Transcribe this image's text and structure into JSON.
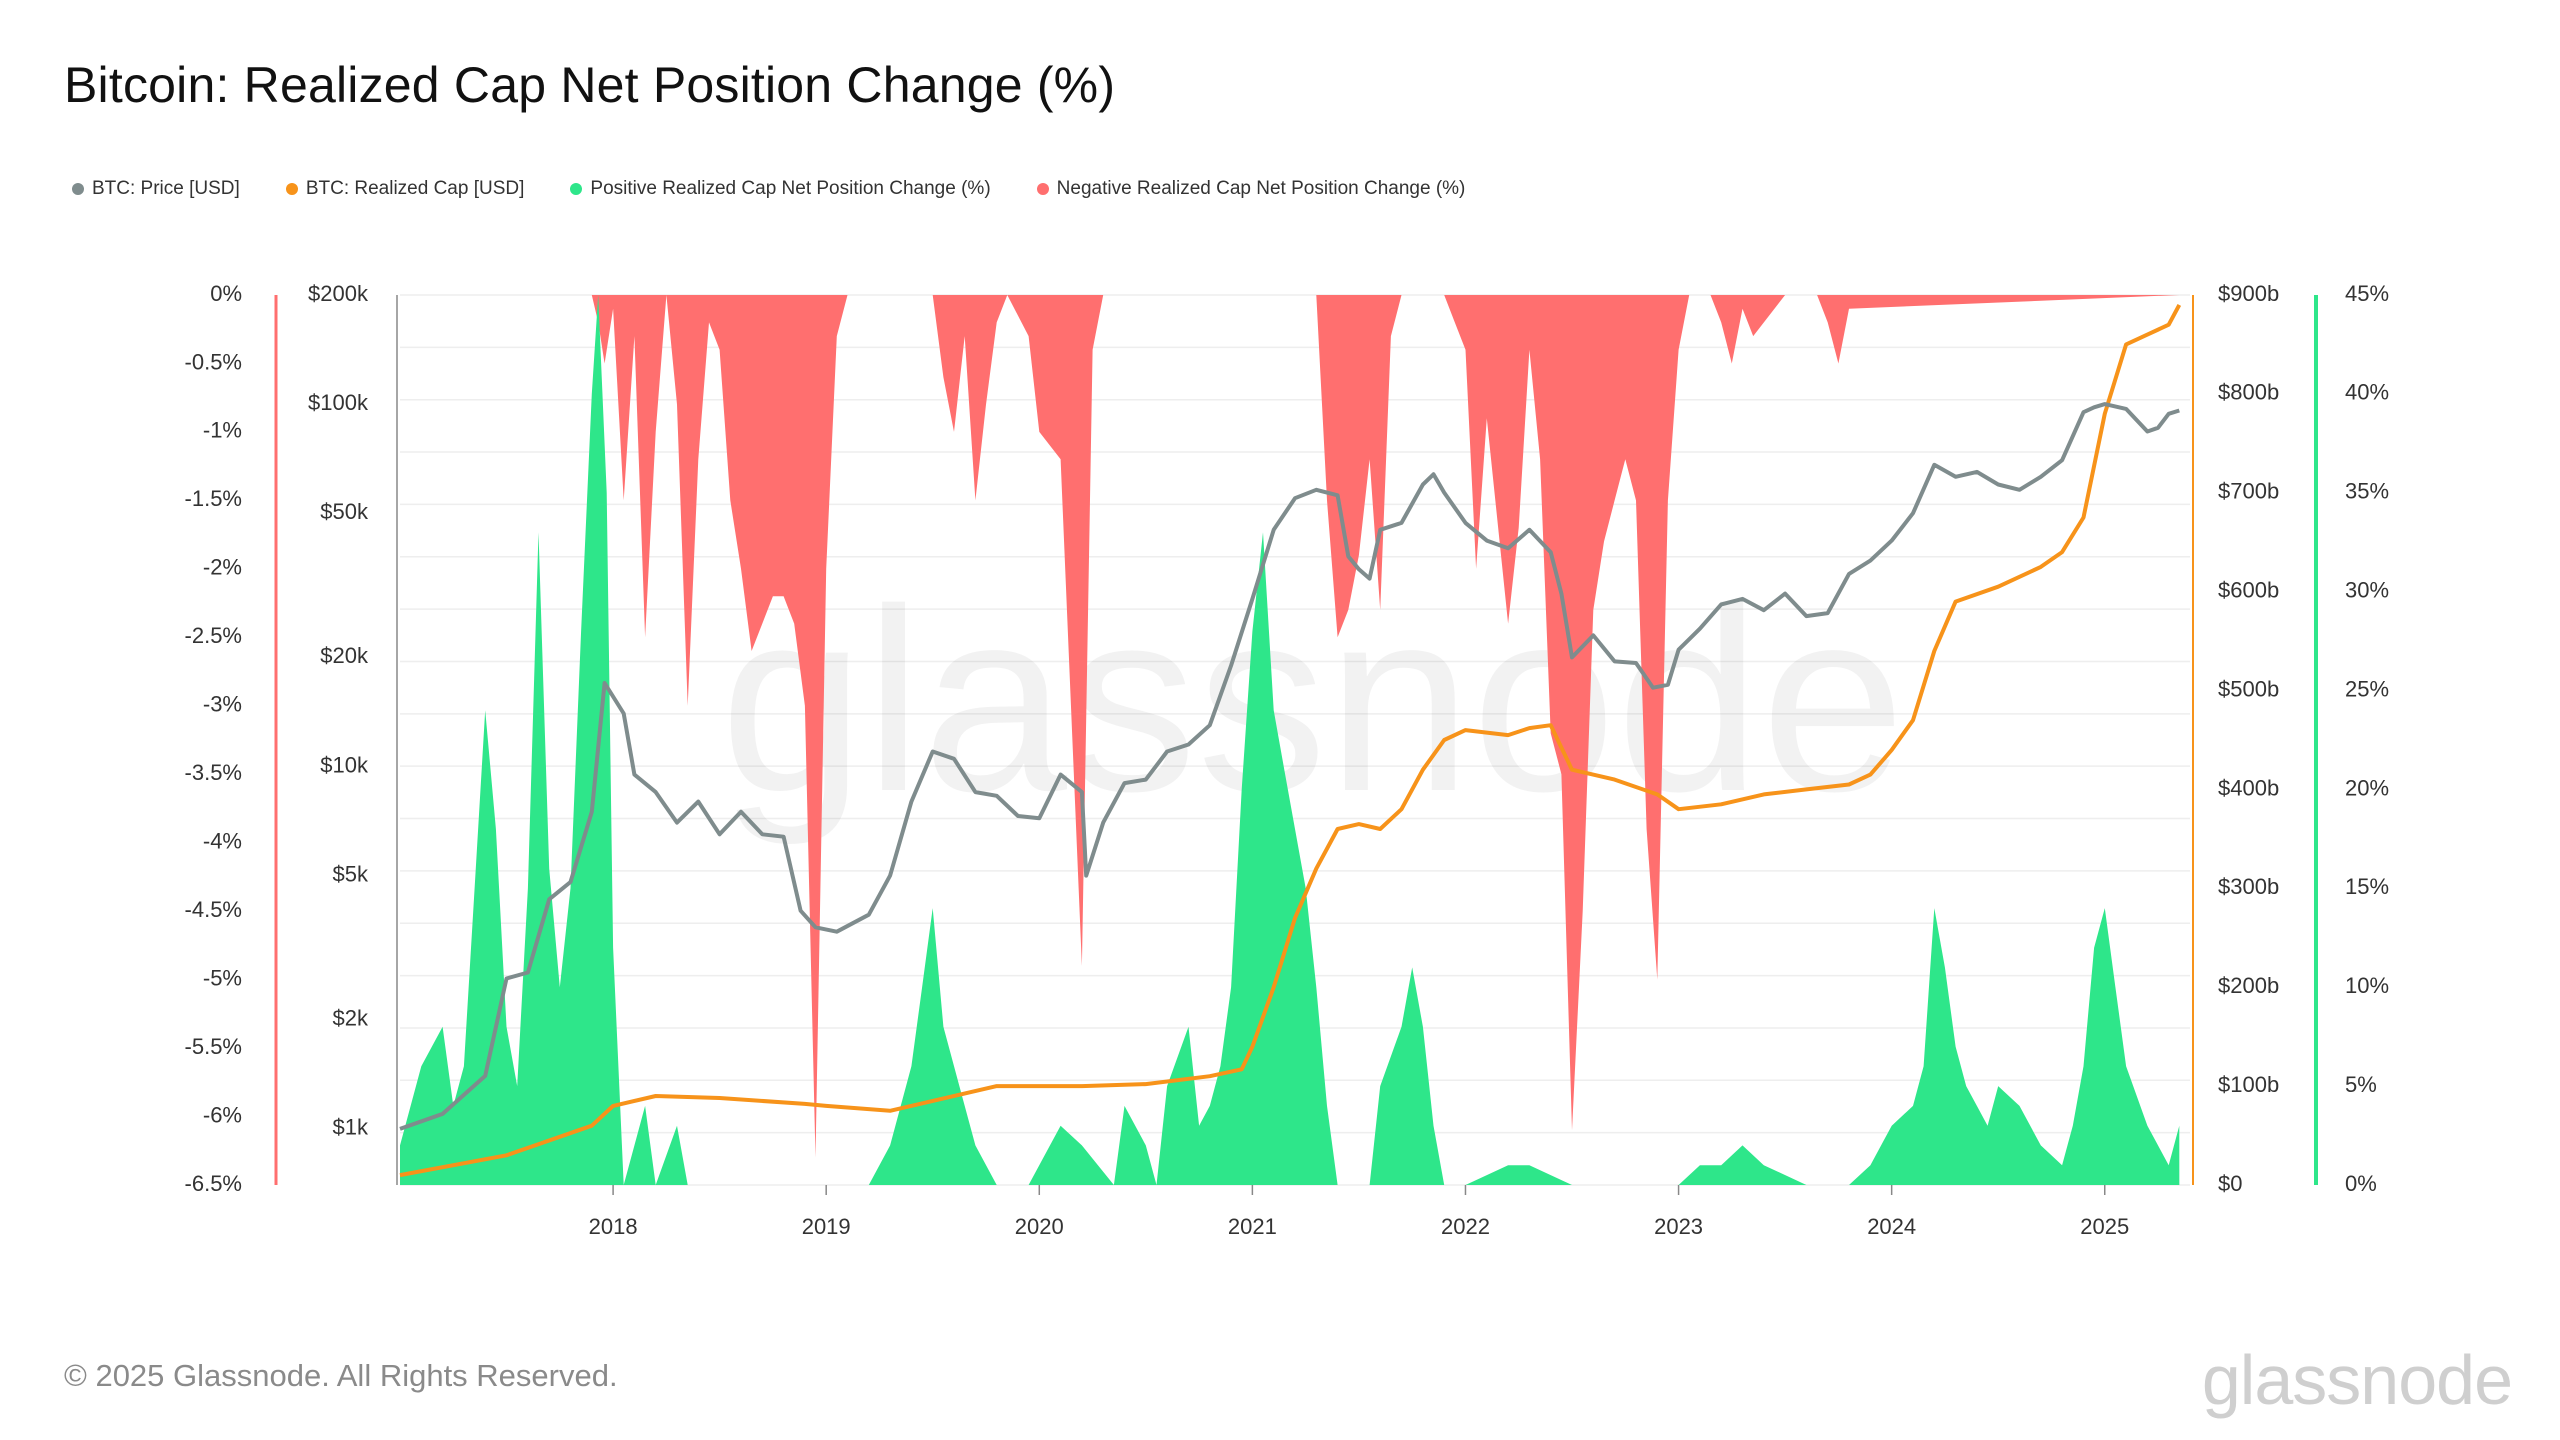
{
  "title": "Bitcoin: Realized Cap Net Position Change (%)",
  "legend": [
    {
      "label": "BTC: Price [USD]",
      "color": "#7f8c8d"
    },
    {
      "label": "BTC: Realized Cap [USD]",
      "color": "#f7931a"
    },
    {
      "label": "Positive Realized Cap Net Position Change (%)",
      "color": "#2ee68a"
    },
    {
      "label": "Negative Realized Cap Net Position Change (%)",
      "color": "#ff6f6f"
    }
  ],
  "footer": "© 2025 Glassnode. All Rights Reserved.",
  "brand": "glassnode",
  "watermark": "glassnode",
  "colors": {
    "price": "#7f8c8d",
    "realized": "#f7931a",
    "positive": "#2ee68a",
    "negative": "#ff6f6f",
    "grid": "#eeeeee"
  },
  "chart_data": {
    "type": "area",
    "x_axis": {
      "range": [
        2017.0,
        2025.4
      ],
      "ticks": [
        "2018",
        "2019",
        "2020",
        "2021",
        "2022",
        "2023",
        "2024",
        "2025"
      ],
      "tick_values": [
        2018,
        2019,
        2020,
        2021,
        2022,
        2023,
        2024,
        2025
      ]
    },
    "y_axes": {
      "negative_pct": {
        "side": "left-outer",
        "range": [
          -6.5,
          0
        ],
        "tick_labels": [
          "0%",
          "-0.5%",
          "-1%",
          "-1.5%",
          "-2%",
          "-2.5%",
          "-3%",
          "-3.5%",
          "-4%",
          "-4.5%",
          "-5%",
          "-5.5%",
          "-6%",
          "-6.5%"
        ],
        "tick_values": [
          0,
          -0.5,
          -1,
          -1.5,
          -2,
          -2.5,
          -3,
          -3.5,
          -4,
          -4.5,
          -5,
          -5.5,
          -6,
          -6.5
        ],
        "color": "#ff6f6f"
      },
      "price": {
        "side": "left-inner",
        "scale": "log",
        "range": [
          700,
          200000
        ],
        "tick_labels": [
          "$200k",
          "$100k",
          "$50k",
          "$20k",
          "$10k",
          "$5k",
          "$2k",
          "$1k"
        ],
        "tick_values": [
          200000,
          100000,
          50000,
          20000,
          10000,
          5000,
          2000,
          1000
        ]
      },
      "realized_cap": {
        "side": "right-inner",
        "range": [
          0,
          900
        ],
        "unit": "b USD",
        "tick_labels": [
          "$900b",
          "$800b",
          "$700b",
          "$600b",
          "$500b",
          "$400b",
          "$300b",
          "$200b",
          "$100b",
          "$0"
        ],
        "tick_values": [
          900,
          800,
          700,
          600,
          500,
          400,
          300,
          200,
          100,
          0
        ],
        "color": "#f7931a"
      },
      "positive_pct": {
        "side": "right-outer",
        "range": [
          0,
          45
        ],
        "tick_labels": [
          "45%",
          "40%",
          "35%",
          "30%",
          "25%",
          "20%",
          "15%",
          "10%",
          "5%",
          "0%"
        ],
        "tick_values": [
          45,
          40,
          35,
          30,
          25,
          20,
          15,
          10,
          5,
          0
        ],
        "color": "#2ee68a"
      }
    },
    "series": [
      {
        "name": "BTC: Price [USD]",
        "axis": "price",
        "style": "line",
        "x": [
          2017.0,
          2017.2,
          2017.4,
          2017.5,
          2017.6,
          2017.7,
          2017.8,
          2017.9,
          2017.96,
          2018.05,
          2018.1,
          2018.2,
          2018.3,
          2018.4,
          2018.5,
          2018.6,
          2018.7,
          2018.8,
          2018.88,
          2018.95,
          2019.05,
          2019.2,
          2019.3,
          2019.4,
          2019.5,
          2019.6,
          2019.7,
          2019.8,
          2019.9,
          2020.0,
          2020.1,
          2020.2,
          2020.22,
          2020.3,
          2020.4,
          2020.5,
          2020.6,
          2020.7,
          2020.8,
          2020.9,
          2021.0,
          2021.1,
          2021.2,
          2021.3,
          2021.4,
          2021.45,
          2021.5,
          2021.55,
          2021.6,
          2021.7,
          2021.8,
          2021.85,
          2021.9,
          2022.0,
          2022.1,
          2022.2,
          2022.3,
          2022.4,
          2022.45,
          2022.5,
          2022.6,
          2022.7,
          2022.8,
          2022.88,
          2022.95,
          2023.0,
          2023.1,
          2023.2,
          2023.3,
          2023.4,
          2023.5,
          2023.6,
          2023.7,
          2023.8,
          2023.9,
          2024.0,
          2024.1,
          2024.2,
          2024.3,
          2024.4,
          2024.5,
          2024.6,
          2024.7,
          2024.8,
          2024.9,
          2024.95,
          2025.0,
          2025.1,
          2025.2,
          2025.25,
          2025.3,
          2025.35
        ],
        "y": [
          1000,
          1100,
          1400,
          2600,
          2700,
          4300,
          4800,
          7500,
          17000,
          14000,
          9500,
          8500,
          7000,
          8000,
          6500,
          7500,
          6500,
          6400,
          4000,
          3600,
          3500,
          3900,
          5000,
          8000,
          11000,
          10500,
          8500,
          8300,
          7300,
          7200,
          9500,
          8500,
          5000,
          7000,
          9000,
          9200,
          11000,
          11500,
          13000,
          19000,
          29000,
          45000,
          55000,
          58000,
          56000,
          38000,
          35000,
          33000,
          45000,
          47000,
          60000,
          64000,
          57000,
          47000,
          42000,
          40000,
          45000,
          39000,
          30000,
          20000,
          23000,
          19500,
          19300,
          16500,
          16800,
          21000,
          24000,
          28000,
          29000,
          27000,
          30000,
          26000,
          26500,
          34000,
          37000,
          42000,
          50000,
          68000,
          63000,
          65000,
          60000,
          58000,
          63000,
          70000,
          95000,
          98000,
          100000,
          97000,
          84000,
          86000,
          94000,
          96000
        ]
      },
      {
        "name": "BTC: Realized Cap [USD]",
        "axis": "realized_cap",
        "style": "line",
        "x": [
          2017.0,
          2017.5,
          2017.9,
          2018.0,
          2018.2,
          2018.5,
          2018.9,
          2019.0,
          2019.3,
          2019.5,
          2019.8,
          2020.0,
          2020.2,
          2020.5,
          2020.8,
          2020.95,
          2021.0,
          2021.1,
          2021.2,
          2021.3,
          2021.4,
          2021.5,
          2021.6,
          2021.7,
          2021.8,
          2021.9,
          2022.0,
          2022.2,
          2022.3,
          2022.4,
          2022.5,
          2022.7,
          2022.9,
          2023.0,
          2023.2,
          2023.4,
          2023.6,
          2023.8,
          2023.9,
          2024.0,
          2024.1,
          2024.2,
          2024.3,
          2024.5,
          2024.7,
          2024.8,
          2024.9,
          2025.0,
          2025.1,
          2025.2,
          2025.3,
          2025.35
        ],
        "y": [
          10,
          30,
          60,
          80,
          90,
          88,
          82,
          80,
          75,
          85,
          100,
          100,
          100,
          102,
          110,
          117,
          140,
          200,
          270,
          320,
          360,
          365,
          360,
          380,
          420,
          450,
          460,
          455,
          462,
          465,
          420,
          410,
          395,
          380,
          385,
          395,
          400,
          405,
          415,
          440,
          470,
          540,
          590,
          605,
          625,
          640,
          675,
          780,
          850,
          860,
          870,
          890
        ]
      },
      {
        "name": "Positive Realized Cap Net Position Change (%)",
        "axis": "positive_pct",
        "style": "area",
        "x": [
          2017.0,
          2017.1,
          2017.2,
          2017.25,
          2017.3,
          2017.35,
          2017.4,
          2017.45,
          2017.5,
          2017.55,
          2017.6,
          2017.65,
          2017.7,
          2017.75,
          2017.8,
          2017.85,
          2017.9,
          2017.93,
          2017.97,
          2018.0,
          2018.05,
          2018.15,
          2018.2,
          2018.3,
          2018.35,
          2018.5,
          2018.7,
          2019.2,
          2019.3,
          2019.4,
          2019.45,
          2019.5,
          2019.55,
          2019.65,
          2019.7,
          2019.8,
          2019.95,
          2020.1,
          2020.2,
          2020.35,
          2020.4,
          2020.5,
          2020.55,
          2020.6,
          2020.7,
          2020.75,
          2020.8,
          2020.85,
          2020.9,
          2020.95,
          2021.0,
          2021.05,
          2021.1,
          2021.15,
          2021.2,
          2021.25,
          2021.3,
          2021.35,
          2021.4,
          2021.45,
          2021.55,
          2021.6,
          2021.7,
          2021.75,
          2021.8,
          2021.85,
          2021.9,
          2021.95,
          2022.0,
          2022.2,
          2022.3,
          2022.5,
          2022.7,
          2022.9,
          2023.0,
          2023.1,
          2023.2,
          2023.3,
          2023.4,
          2023.6,
          2023.8,
          2023.9,
          2024.0,
          2024.1,
          2024.15,
          2024.2,
          2024.25,
          2024.3,
          2024.35,
          2024.4,
          2024.45,
          2024.5,
          2024.6,
          2024.7,
          2024.8,
          2024.85,
          2024.9,
          2024.95,
          2025.0,
          2025.05,
          2025.1,
          2025.2,
          2025.3,
          2025.35
        ],
        "y": [
          2,
          6,
          8,
          4,
          6,
          15,
          24,
          18,
          8,
          5,
          15,
          33,
          16,
          10,
          15,
          28,
          40,
          45,
          35,
          12,
          0,
          4,
          0,
          3,
          0,
          0,
          0,
          0,
          2,
          6,
          10,
          14,
          8,
          4,
          2,
          0,
          0,
          3,
          2,
          0,
          4,
          2,
          0,
          5,
          8,
          3,
          4,
          6,
          10,
          20,
          28,
          33,
          24,
          21,
          18,
          15,
          10,
          4,
          0,
          0,
          0,
          5,
          8,
          11,
          8,
          3,
          0,
          0,
          0,
          1,
          1,
          0,
          0,
          0,
          0,
          1,
          1,
          2,
          1,
          0,
          0,
          1,
          3,
          4,
          6,
          14,
          11,
          7,
          5,
          4,
          3,
          5,
          4,
          2,
          1,
          3,
          6,
          12,
          14,
          10,
          6,
          3,
          1,
          3
        ]
      },
      {
        "name": "Negative Realized Cap Net Position Change (%)",
        "axis": "negative_pct",
        "style": "area",
        "x": [
          2017.0,
          2017.9,
          2017.93,
          2017.96,
          2018.0,
          2018.05,
          2018.1,
          2018.15,
          2018.2,
          2018.25,
          2018.3,
          2018.35,
          2018.4,
          2018.45,
          2018.5,
          2018.55,
          2018.6,
          2018.65,
          2018.7,
          2018.75,
          2018.8,
          2018.85,
          2018.9,
          2018.95,
          2019.0,
          2019.05,
          2019.1,
          2019.15,
          2019.2,
          2019.25,
          2019.3,
          2019.5,
          2019.55,
          2019.6,
          2019.65,
          2019.7,
          2019.75,
          2019.8,
          2019.85,
          2019.95,
          2020.0,
          2020.1,
          2020.2,
          2020.25,
          2020.3,
          2020.35,
          2020.4,
          2021.3,
          2021.35,
          2021.4,
          2021.45,
          2021.5,
          2021.55,
          2021.6,
          2021.65,
          2021.7,
          2021.9,
          2021.95,
          2022.0,
          2022.05,
          2022.1,
          2022.2,
          2022.25,
          2022.3,
          2022.35,
          2022.4,
          2022.45,
          2022.5,
          2022.55,
          2022.6,
          2022.65,
          2022.7,
          2022.75,
          2022.8,
          2022.85,
          2022.9,
          2022.95,
          2023.0,
          2023.05,
          2023.15,
          2023.2,
          2023.25,
          2023.3,
          2023.35,
          2023.5,
          2023.65,
          2023.7,
          2023.75,
          2023.8,
          2025.35
        ],
        "y": [
          0,
          0,
          -0.2,
          -0.5,
          -0.1,
          -1.5,
          -0.3,
          -2.5,
          -1.0,
          0,
          -0.8,
          -3.0,
          -1.2,
          -0.2,
          -0.4,
          -1.5,
          -2.0,
          -2.6,
          -2.4,
          -2.2,
          -2.2,
          -2.4,
          -3.0,
          -6.3,
          -2.0,
          -0.3,
          0,
          0,
          0,
          0,
          0,
          0,
          -0.6,
          -1.0,
          -0.3,
          -1.5,
          -0.8,
          -0.2,
          0,
          -0.3,
          -1.0,
          -1.2,
          -4.9,
          -0.4,
          0,
          0,
          0,
          0,
          -1.5,
          -2.5,
          -2.3,
          -1.9,
          -1.2,
          -2.3,
          -0.3,
          0,
          0,
          -0.2,
          -0.4,
          -2.0,
          -0.9,
          -2.4,
          -1.7,
          -0.4,
          -1.2,
          -3.2,
          -3.5,
          -6.1,
          -4.5,
          -2.3,
          -1.8,
          -1.5,
          -1.2,
          -1.5,
          -3.9,
          -5.0,
          -1.5,
          -0.4,
          0,
          0,
          -0.2,
          -0.5,
          -0.1,
          -0.3,
          0,
          0,
          -0.2,
          -0.5,
          -0.1,
          0
        ]
      }
    ]
  }
}
